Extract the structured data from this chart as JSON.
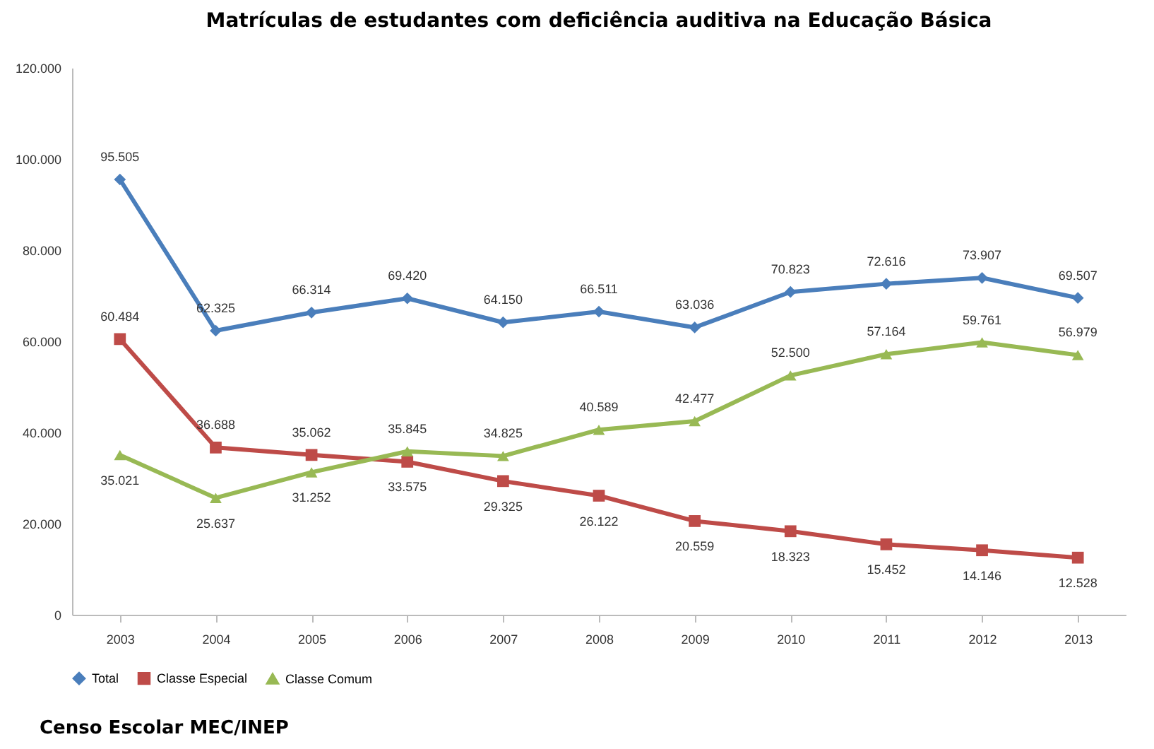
{
  "chart_data": {
    "type": "line",
    "title": "Matrículas de estudantes com deficiência auditiva na Educação Básica",
    "categories": [
      "2003",
      "2004",
      "2005",
      "2006",
      "2007",
      "2008",
      "2009",
      "2010",
      "2011",
      "2012",
      "2013"
    ],
    "series": [
      {
        "name": "Total",
        "color": "#4a7ebb",
        "marker": "diamond",
        "values": [
          95505,
          62325,
          66314,
          69420,
          64150,
          66511,
          63036,
          70823,
          72616,
          73907,
          69507
        ],
        "value_labels": [
          "95.505",
          "62.325",
          "66.314",
          "69.420",
          "64.150",
          "66.511",
          "63.036",
          "70.823",
          "72.616",
          "73.907",
          "69.507"
        ]
      },
      {
        "name": "Classe Especial",
        "color": "#be4b48",
        "marker": "square",
        "values": [
          60484,
          36688,
          35062,
          33575,
          29325,
          26122,
          20559,
          18323,
          15452,
          14146,
          12528
        ],
        "value_labels": [
          "60.484",
          "36.688",
          "35.062",
          "33.575",
          "29.325",
          "26.122",
          "20.559",
          "18.323",
          "15.452",
          "14.146",
          "12.528"
        ]
      },
      {
        "name": "Classe Comum",
        "color": "#98b954",
        "marker": "triangle",
        "values": [
          35021,
          25637,
          31252,
          35845,
          34825,
          40589,
          42477,
          52500,
          57164,
          59761,
          56979
        ],
        "value_labels": [
          "35.021",
          "25.637",
          "31.252",
          "35.845",
          "34.825",
          "40.589",
          "42.477",
          "52.500",
          "57.164",
          "59.761",
          "56.979"
        ]
      }
    ],
    "ylim": [
      0,
      120000
    ],
    "yticks": [
      0,
      {
        "value": 20000,
        "label": "20.000"
      },
      {
        "value": 40000,
        "label": "40.000"
      },
      {
        "value": 60000,
        "label": "60.000"
      },
      {
        "value": 80000,
        "label": "80.000"
      },
      {
        "value": 100000,
        "label": "100.000"
      },
      {
        "value": 120000,
        "label": "120.000"
      }
    ],
    "legend": "bottom",
    "grid": false,
    "annotations": [
      "Censo Escolar MEC/INEP"
    ]
  }
}
